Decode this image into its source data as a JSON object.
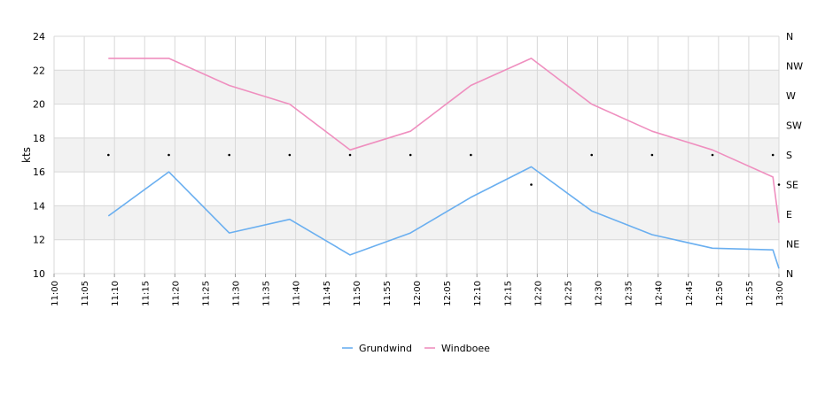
{
  "chart_data": {
    "type": "line",
    "ylabel": "kts",
    "ylim": [
      10,
      24
    ],
    "yticks": [
      10,
      12,
      14,
      16,
      18,
      20,
      22,
      24
    ],
    "x_ticks": [
      "11:00",
      "11:05",
      "11:10",
      "11:15",
      "11:20",
      "11:25",
      "11:30",
      "11:35",
      "11:40",
      "11:45",
      "11:50",
      "11:55",
      "12:00",
      "12:05",
      "12:10",
      "12:15",
      "12:20",
      "12:25",
      "12:30",
      "12:35",
      "12:40",
      "12:45",
      "12:50",
      "12:55",
      "13:00"
    ],
    "direction_ticks": [
      "N",
      "NE",
      "E",
      "SE",
      "S",
      "SW",
      "W",
      "NW",
      "N"
    ],
    "grid": true,
    "legend_position": "bottom",
    "series": [
      {
        "name": "Grundwind",
        "color": "#6aaff0",
        "points": [
          [
            "11:09",
            13.4
          ],
          [
            "11:19",
            16.0
          ],
          [
            "11:29",
            12.4
          ],
          [
            "11:39",
            13.2
          ],
          [
            "11:49",
            11.1
          ],
          [
            "11:59",
            12.4
          ],
          [
            "12:09",
            14.5
          ],
          [
            "12:19",
            16.3
          ],
          [
            "12:29",
            13.7
          ],
          [
            "12:39",
            12.3
          ],
          [
            "12:49",
            11.5
          ],
          [
            "12:59",
            11.4
          ],
          [
            "13:00",
            10.3
          ]
        ]
      },
      {
        "name": "Windboee",
        "color": "#ef8fbf",
        "points": [
          [
            "11:09",
            22.7
          ],
          [
            "11:19",
            22.7
          ],
          [
            "11:29",
            21.1
          ],
          [
            "11:39",
            20.0
          ],
          [
            "11:49",
            17.3
          ],
          [
            "11:59",
            18.4
          ],
          [
            "12:09",
            21.1
          ],
          [
            "12:19",
            22.7
          ],
          [
            "12:29",
            20.0
          ],
          [
            "12:39",
            18.4
          ],
          [
            "12:49",
            17.3
          ],
          [
            "12:59",
            15.7
          ],
          [
            "13:00",
            13.0
          ]
        ]
      }
    ],
    "direction_points": [
      [
        "11:09",
        "S"
      ],
      [
        "11:19",
        "S"
      ],
      [
        "11:29",
        "S"
      ],
      [
        "11:39",
        "S"
      ],
      [
        "11:49",
        "S"
      ],
      [
        "11:59",
        "S"
      ],
      [
        "12:09",
        "S"
      ],
      [
        "12:19",
        "SE"
      ],
      [
        "12:29",
        "S"
      ],
      [
        "12:39",
        "S"
      ],
      [
        "12:49",
        "S"
      ],
      [
        "12:59",
        "S"
      ],
      [
        "13:00",
        "SE"
      ]
    ]
  }
}
